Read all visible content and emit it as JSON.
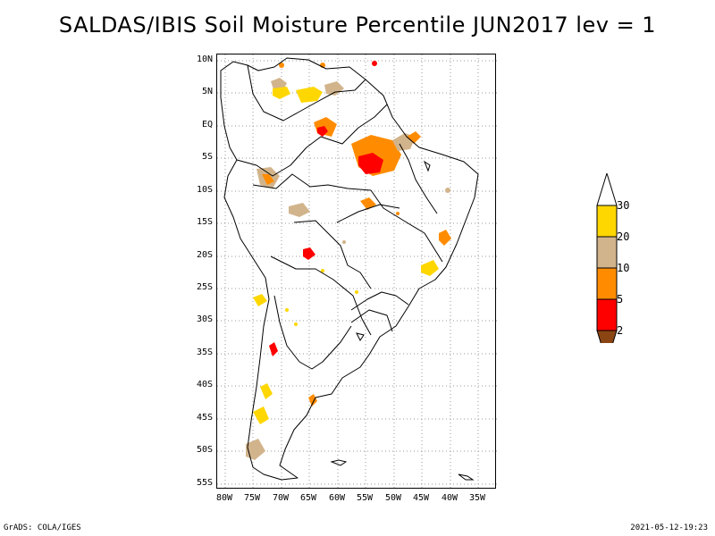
{
  "title": "SALDAS/IBIS Soil Moisture Percentile JUN2017 lev = 1",
  "map": {
    "region": "South America",
    "lat_labels": [
      "10N",
      "5N",
      "EQ",
      "5S",
      "10S",
      "15S",
      "20S",
      "25S",
      "30S",
      "35S",
      "40S",
      "45S",
      "50S",
      "55S"
    ],
    "lon_labels": [
      "80W",
      "75W",
      "70W",
      "65W",
      "60W",
      "55W",
      "50W",
      "45W",
      "40W",
      "35W"
    ],
    "grid": "dotted"
  },
  "colorbar": {
    "levels": [
      "30",
      "20",
      "10",
      "5",
      "2"
    ],
    "colors": {
      "above_30": "#ffffff",
      "20_30": "#ffd700",
      "10_20": "#d2b48c",
      "5_10": "#ff8c00",
      "2_5": "#ff0000",
      "below_2": "#8b4513"
    }
  },
  "footer": {
    "left": "GrADS: COLA/IGES",
    "right": "2021-05-12-19:23"
  }
}
